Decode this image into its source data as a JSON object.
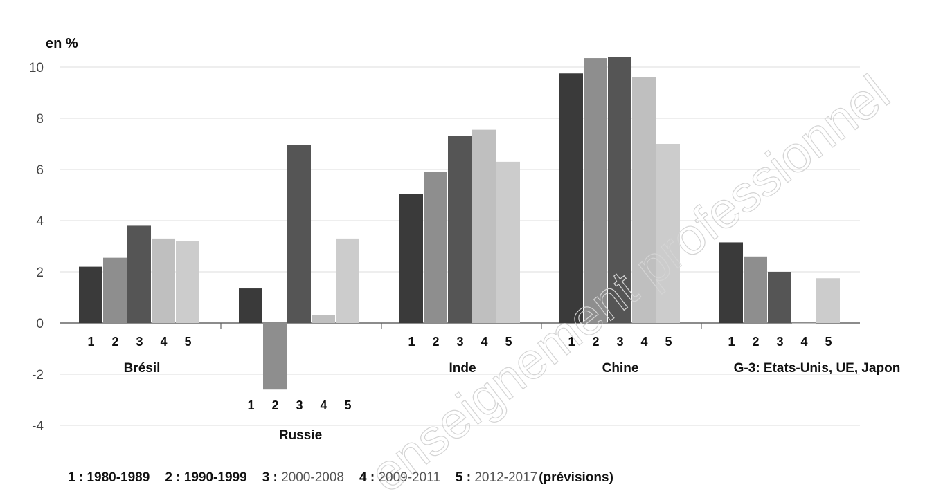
{
  "chart_data": {
    "type": "bar",
    "ylabel": "en %",
    "ylim": [
      -4,
      10.5
    ],
    "yticks": [
      10,
      8,
      6,
      4,
      2,
      0,
      -2,
      -4
    ],
    "grid": true,
    "series_indices": [
      "1",
      "2",
      "3",
      "4",
      "5"
    ],
    "groups": [
      {
        "name": "Brésil",
        "values": [
          2.2,
          2.55,
          3.8,
          3.3,
          3.2
        ]
      },
      {
        "name": "Russie",
        "values": [
          1.35,
          -2.6,
          6.95,
          0.3,
          3.3
        ]
      },
      {
        "name": "Inde",
        "values": [
          5.05,
          5.9,
          7.3,
          7.55,
          6.3
        ]
      },
      {
        "name": "Chine",
        "values": [
          9.75,
          10.35,
          10.4,
          9.6,
          7.0
        ]
      },
      {
        "name": "G-3: Etats-Unis, UE, Japon",
        "values": [
          3.15,
          2.6,
          2.0,
          -0.05,
          1.75
        ]
      }
    ],
    "colors": [
      "#3a3a3a",
      "#8e8e8e",
      "#555555",
      "#bfbfbf",
      "#cccccc"
    ]
  },
  "legend": [
    {
      "num": "1 :",
      "years": "1980-1989",
      "style": "bold"
    },
    {
      "num": "2 :",
      "years": "1990-1999",
      "style": "bold"
    },
    {
      "num": "3 :",
      "years": "2000-2008",
      "style": "light"
    },
    {
      "num": "4 :",
      "years": "2009-2011",
      "style": "light"
    },
    {
      "num": "5 :",
      "years": "2012-2017",
      "style": "light",
      "note": "(prévisions)"
    }
  ],
  "watermark": "enseignement professionnel"
}
